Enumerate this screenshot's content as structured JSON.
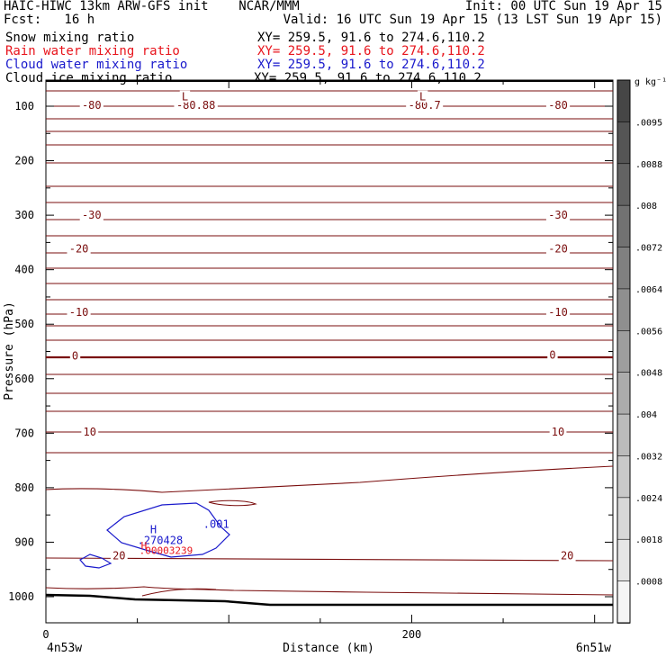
{
  "header": {
    "line1_left": "HAIC-HIWC 13km ARW-GFS init    NCAR/MMM",
    "line1_right": "Init: 00 UTC Sun 19 Apr 15",
    "line2_left": "Fcst:   16 h",
    "line2_right": "Valid: 16 UTC Sun 19 Apr 15 (13 LST Sun 19 Apr 15)"
  },
  "fields": [
    {
      "label": "Snow mixing ratio",
      "xy": "XY= 259.5, 91.6 to 274.6,110.2",
      "color": "#000000"
    },
    {
      "label": "Rain water mixing ratio",
      "xy": "XY= 259.5, 91.6 to 274.6,110.2",
      "color": "#e8141c"
    },
    {
      "label": "Cloud water mixing ratio",
      "xy": "XY= 259.5, 91.6 to 274.6,110.2",
      "color": "#1a1acc"
    },
    {
      "label": "Cloud ice mixing ratio",
      "xy": "XY= 259.5, 91.6 to 274.6,110.2",
      "color": "#000000"
    }
  ],
  "colorbar": {
    "unit": "g kg⁻¹",
    "labels": [
      ".0095",
      ".0088",
      ".008",
      ".0072",
      ".0064",
      ".0056",
      ".0048",
      ".004",
      ".0032",
      ".0024",
      ".0018",
      ".0008"
    ]
  },
  "chart_data": {
    "type": "contour cross-section",
    "ylabel": "Pressure (hPa)",
    "xlabel": "Distance (km)",
    "y_ticks": [
      "100",
      "200",
      "300",
      "400",
      "500",
      "600",
      "700",
      "800",
      "900",
      "1000"
    ],
    "x_ticks": [
      "0",
      "200"
    ],
    "x_endpoints": {
      "left": "4n53w",
      "right": "6n51w"
    },
    "ylim": [
      1050,
      50
    ],
    "xlim": [
      0,
      310
    ],
    "temperature_contour_labels": [
      {
        "text": "-80",
        "x": 25,
        "p": 98
      },
      {
        "text": "-80.88",
        "x": 82,
        "p": 98
      },
      {
        "text": "L",
        "x": 76,
        "p": 83
      },
      {
        "text": "-80.7",
        "x": 207,
        "p": 98
      },
      {
        "text": "L",
        "x": 206,
        "p": 83
      },
      {
        "text": "-80",
        "x": 280,
        "p": 98
      },
      {
        "text": "-30",
        "x": 25,
        "p": 300
      },
      {
        "text": "-30",
        "x": 280,
        "p": 300
      },
      {
        "text": "-20",
        "x": 18,
        "p": 362
      },
      {
        "text": "-20",
        "x": 280,
        "p": 362
      },
      {
        "text": "-10",
        "x": 18,
        "p": 478
      },
      {
        "text": "-10",
        "x": 280,
        "p": 478
      },
      {
        "text": "0",
        "x": 16,
        "p": 558
      },
      {
        "text": "0",
        "x": 277,
        "p": 557
      },
      {
        "text": "10",
        "x": 24,
        "p": 698
      },
      {
        "text": "10",
        "x": 280,
        "p": 698
      },
      {
        "text": "20",
        "x": 40,
        "p": 925
      },
      {
        "text": "20",
        "x": 285,
        "p": 925
      }
    ],
    "cloud_water_labels": [
      {
        "text": "H",
        "x": 57,
        "p": 877
      },
      {
        "text": ".001",
        "x": 86,
        "p": 867
      },
      {
        "text": ".270428",
        "x": 50,
        "p": 897
      }
    ],
    "rain_water_labels": [
      {
        "text": "H",
        "x": 52,
        "p": 906
      },
      {
        "text": ".00003239",
        "x": 51,
        "p": 915
      }
    ]
  }
}
